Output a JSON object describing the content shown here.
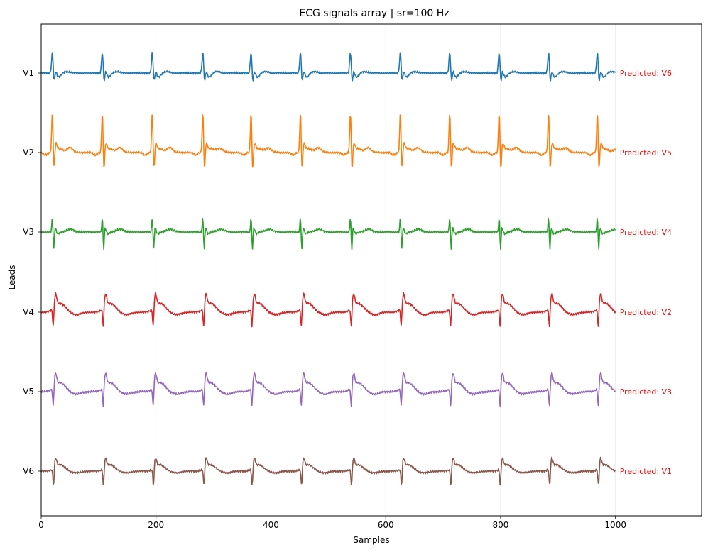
{
  "chart_data": {
    "type": "line",
    "title": "ECG signals array | sr=100 Hz",
    "xlabel": "Samples",
    "ylabel": "Leads",
    "xlim": [
      0,
      1150
    ],
    "xticks": [
      "0",
      "200",
      "400",
      "600",
      "800",
      "1000"
    ],
    "xtick_values": [
      0,
      200,
      400,
      600,
      800,
      1000
    ],
    "grid": "vertical",
    "num_samples": 1000,
    "leads": [
      "V1",
      "V2",
      "V3",
      "V4",
      "V5",
      "V6"
    ],
    "beat_positions": [
      21,
      108,
      195,
      283,
      367,
      453,
      540,
      627,
      713,
      799,
      885,
      970
    ],
    "series": [
      {
        "name": "V1",
        "color": "#1f77b4",
        "morphology": "v1",
        "annotation": "Predicted: V6"
      },
      {
        "name": "V2",
        "color": "#ff7f0e",
        "morphology": "v2",
        "annotation": "Predicted: V5"
      },
      {
        "name": "V3",
        "color": "#2ca02c",
        "morphology": "v3",
        "annotation": "Predicted: V4"
      },
      {
        "name": "V4",
        "color": "#d62728",
        "morphology": "v4",
        "annotation": "Predicted: V2"
      },
      {
        "name": "V5",
        "color": "#9467bd",
        "morphology": "v4",
        "annotation": "Predicted: V3"
      },
      {
        "name": "V6",
        "color": "#8c564b",
        "morphology": "v6",
        "annotation": "Predicted: V1"
      }
    ],
    "annotation_color": "#ff0000"
  }
}
